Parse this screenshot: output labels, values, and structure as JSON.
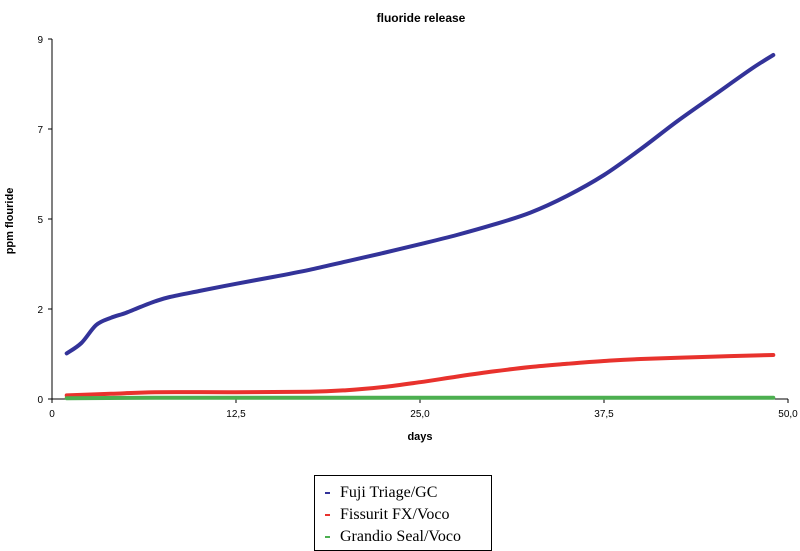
{
  "chart_data": {
    "type": "line",
    "title": "fluoride release",
    "xlabel": "days",
    "ylabel": "ppm flouride",
    "xlim": [
      0,
      50
    ],
    "ylim": [
      0,
      9
    ],
    "x_ticks": [
      "0",
      "12,5",
      "25,0",
      "37,5",
      "50,0"
    ],
    "x_tick_values": [
      0,
      12.5,
      25,
      37.5,
      50
    ],
    "y_ticks": [
      "0",
      "2",
      "5",
      "7",
      "9"
    ],
    "y_tick_values": [
      0,
      2.25,
      4.5,
      6.75,
      9
    ],
    "grid": false,
    "legend_position": "bottom",
    "series": [
      {
        "name": "Fuji Triage/GC",
        "color": "#333399",
        "points": [
          [
            1,
            1.14
          ],
          [
            2,
            1.4
          ],
          [
            3,
            1.85
          ],
          [
            4,
            2.03
          ],
          [
            5,
            2.15
          ],
          [
            6,
            2.3
          ],
          [
            7,
            2.44
          ],
          [
            8,
            2.55
          ],
          [
            10,
            2.7
          ],
          [
            12.5,
            2.88
          ],
          [
            15,
            3.05
          ],
          [
            17.5,
            3.23
          ],
          [
            20,
            3.44
          ],
          [
            22.5,
            3.65
          ],
          [
            25,
            3.87
          ],
          [
            27.5,
            4.1
          ],
          [
            30,
            4.36
          ],
          [
            32.5,
            4.66
          ],
          [
            35,
            5.08
          ],
          [
            37.5,
            5.6
          ],
          [
            40,
            6.25
          ],
          [
            42.5,
            6.95
          ],
          [
            45,
            7.6
          ],
          [
            47.5,
            8.25
          ],
          [
            49,
            8.6
          ]
        ]
      },
      {
        "name": "Fissurit FX/Voco",
        "color": "#e8322d",
        "points": [
          [
            1,
            0.09
          ],
          [
            4,
            0.13
          ],
          [
            7,
            0.17
          ],
          [
            12.5,
            0.17
          ],
          [
            17.5,
            0.18
          ],
          [
            20,
            0.22
          ],
          [
            22.5,
            0.3
          ],
          [
            25,
            0.42
          ],
          [
            27.5,
            0.56
          ],
          [
            30,
            0.69
          ],
          [
            32.5,
            0.8
          ],
          [
            35,
            0.88
          ],
          [
            37.5,
            0.95
          ],
          [
            40,
            1.0
          ],
          [
            45,
            1.06
          ],
          [
            49,
            1.1
          ]
        ]
      },
      {
        "name": "Grandio Seal/Voco",
        "color": "#4caf50",
        "points": [
          [
            1,
            0.02
          ],
          [
            7,
            0.03
          ],
          [
            25,
            0.03
          ],
          [
            49,
            0.03
          ]
        ]
      }
    ]
  }
}
